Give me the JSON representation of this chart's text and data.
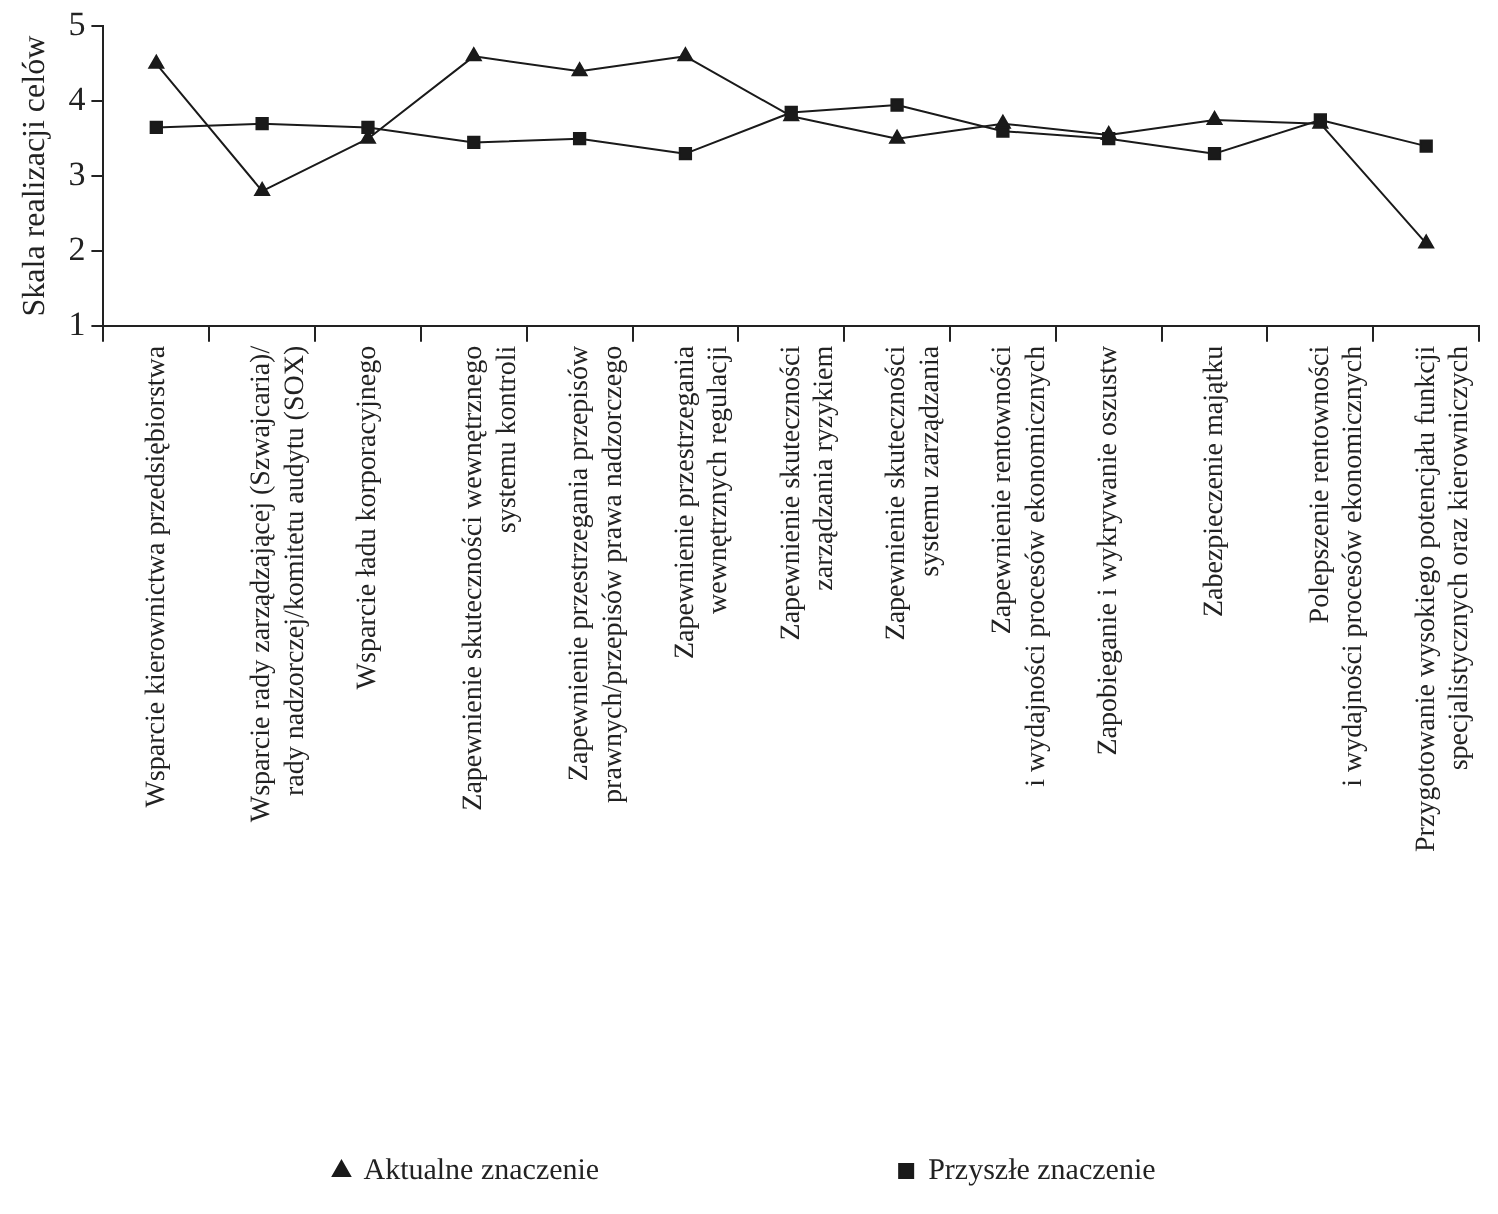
{
  "chart_data": {
    "type": "line",
    "ylabel": "Skala realizacji celów",
    "categories": [
      "Wsparcie kierownictwa przedsiębiorstwa",
      "Wsparcie rady zarządzającej (Szwajcaria)/\nrady nadzorczej/komitetu audytu (SOX)",
      "Wsparcie ładu korporacyjnego",
      "Zapewnienie skuteczności wewnętrznego\nsystemu kontroli",
      "Zapewnienie przestrzegania przepisów\nprawnych/przepisów prawa nadzorczego",
      "Zapewnienie przestrzegania\nwewnętrznych regulacji",
      "Zapewnienie skuteczności\nzarządzania ryzykiem",
      "Zapewnienie skuteczności\nsystemu zarządzania",
      "Zapewnienie rentowności\ni wydajności procesów ekonomicznych",
      "Zapobieganie i wykrywanie oszustw",
      "Zabezpieczenie majątku",
      "Polepszenie rentowności\ni wydajności procesów ekonomicznych",
      "Przygotowanie wysokiego potencjału funkcji\nspecjalistycznych oraz kierowniczych"
    ],
    "series": [
      {
        "name": "Aktualne znaczenie",
        "color": "#1a1a1a",
        "marker": "triangle",
        "values": [
          4.5,
          2.8,
          3.5,
          4.6,
          4.4,
          4.6,
          3.8,
          3.5,
          3.7,
          3.55,
          3.75,
          3.7,
          2.1
        ]
      },
      {
        "name": "Przyszłe znaczenie",
        "color": "#1a1a1a",
        "marker": "square",
        "values": [
          3.65,
          3.7,
          3.65,
          3.45,
          3.5,
          3.3,
          3.85,
          3.95,
          3.6,
          3.5,
          3.3,
          3.75,
          3.4
        ]
      }
    ],
    "ylim": [
      1,
      5
    ],
    "yticks": [
      1,
      2,
      3,
      4,
      5
    ],
    "grid": false,
    "legend": "bottom",
    "line_style": "solid"
  }
}
